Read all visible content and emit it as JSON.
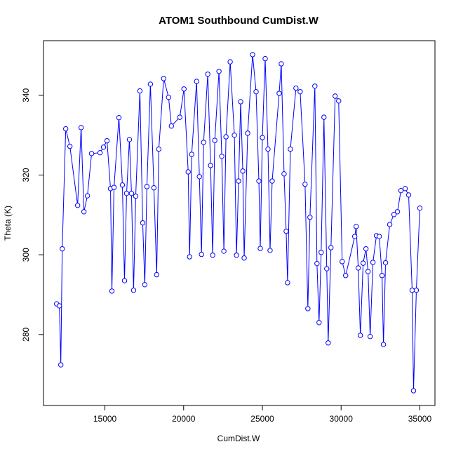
{
  "chart_data": {
    "type": "line",
    "markers": true,
    "title": "ATOM1 Southbound CumDist.W",
    "x_label": "CumDist.W",
    "y_label": "Theta (K)",
    "color": "#0000ff",
    "grid": false,
    "x": [
      11933,
      12111,
      12200,
      12289,
      12511,
      12778,
      13267,
      13489,
      13667,
      13889,
      14156,
      14689,
      14911,
      15133,
      15356,
      15444,
      15578,
      15889,
      16111,
      16244,
      16378,
      16556,
      16689,
      16822,
      16956,
      17222,
      17400,
      17533,
      17667,
      17889,
      18111,
      18289,
      18422,
      18733,
      19044,
      19222,
      19756,
      20022,
      20289,
      20378,
      20511,
      20822,
      21000,
      21133,
      21267,
      21533,
      21711,
      21844,
      21978,
      22244,
      22422,
      22556,
      22689,
      22956,
      23222,
      23356,
      23489,
      23622,
      23756,
      23844,
      24067,
      24378,
      24600,
      24778,
      24867,
      25000,
      25178,
      25356,
      25489,
      25622,
      26067,
      26200,
      26378,
      26511,
      26600,
      26778,
      27133,
      27400,
      27711,
      27889,
      28022,
      28333,
      28467,
      28600,
      28733,
      28911,
      29089,
      29178,
      29356,
      29622,
      29844,
      30067,
      30289,
      30867,
      30956,
      31089,
      31222,
      31400,
      31578,
      31711,
      31844,
      32022,
      32244,
      32422,
      32600,
      32689,
      32822,
      33089,
      33356,
      33578,
      33800,
      34067,
      34289,
      34511,
      34600,
      34778,
      35000
    ],
    "values": [
      287.7,
      287.2,
      272.4,
      301.5,
      331.6,
      327.2,
      312.4,
      331.9,
      310.8,
      314.8,
      325.4,
      325.6,
      327.0,
      328.6,
      316.6,
      290.9,
      316.9,
      334.4,
      317.5,
      293.5,
      315.4,
      328.9,
      315.4,
      291.1,
      314.7,
      341.1,
      308.0,
      292.5,
      317.1,
      342.8,
      316.8,
      295.0,
      326.5,
      344.2,
      339.5,
      332.3,
      334.5,
      341.6,
      320.8,
      299.5,
      325.2,
      343.5,
      319.6,
      300.1,
      328.2,
      345.3,
      322.4,
      299.9,
      328.7,
      346.0,
      324.7,
      300.9,
      329.6,
      348.4,
      330.0,
      299.9,
      318.5,
      338.4,
      321.0,
      299.2,
      330.5,
      350.2,
      340.9,
      318.5,
      301.6,
      329.4,
      349.2,
      326.5,
      301.1,
      318.5,
      340.5,
      347.9,
      320.3,
      305.9,
      293.0,
      326.5,
      341.8,
      340.9,
      317.7,
      286.5,
      309.4,
      342.3,
      297.8,
      283.0,
      300.6,
      334.5,
      296.5,
      277.9,
      301.8,
      339.8,
      338.6,
      298.3,
      294.8,
      304.6,
      307.1,
      296.7,
      279.8,
      297.9,
      301.5,
      295.8,
      279.5,
      298.1,
      304.8,
      304.6,
      294.8,
      277.5,
      298.0,
      307.6,
      310.1,
      310.8,
      316.1,
      316.6,
      315.0,
      291.1,
      265.9,
      291.1,
      311.7
    ],
    "xlim": [
      11100,
      35960
    ],
    "ylim": [
      262.2,
      353.7
    ],
    "xticks": [
      15000,
      20000,
      25000,
      30000,
      35000
    ],
    "yticks": [
      280,
      300,
      320,
      340
    ]
  }
}
